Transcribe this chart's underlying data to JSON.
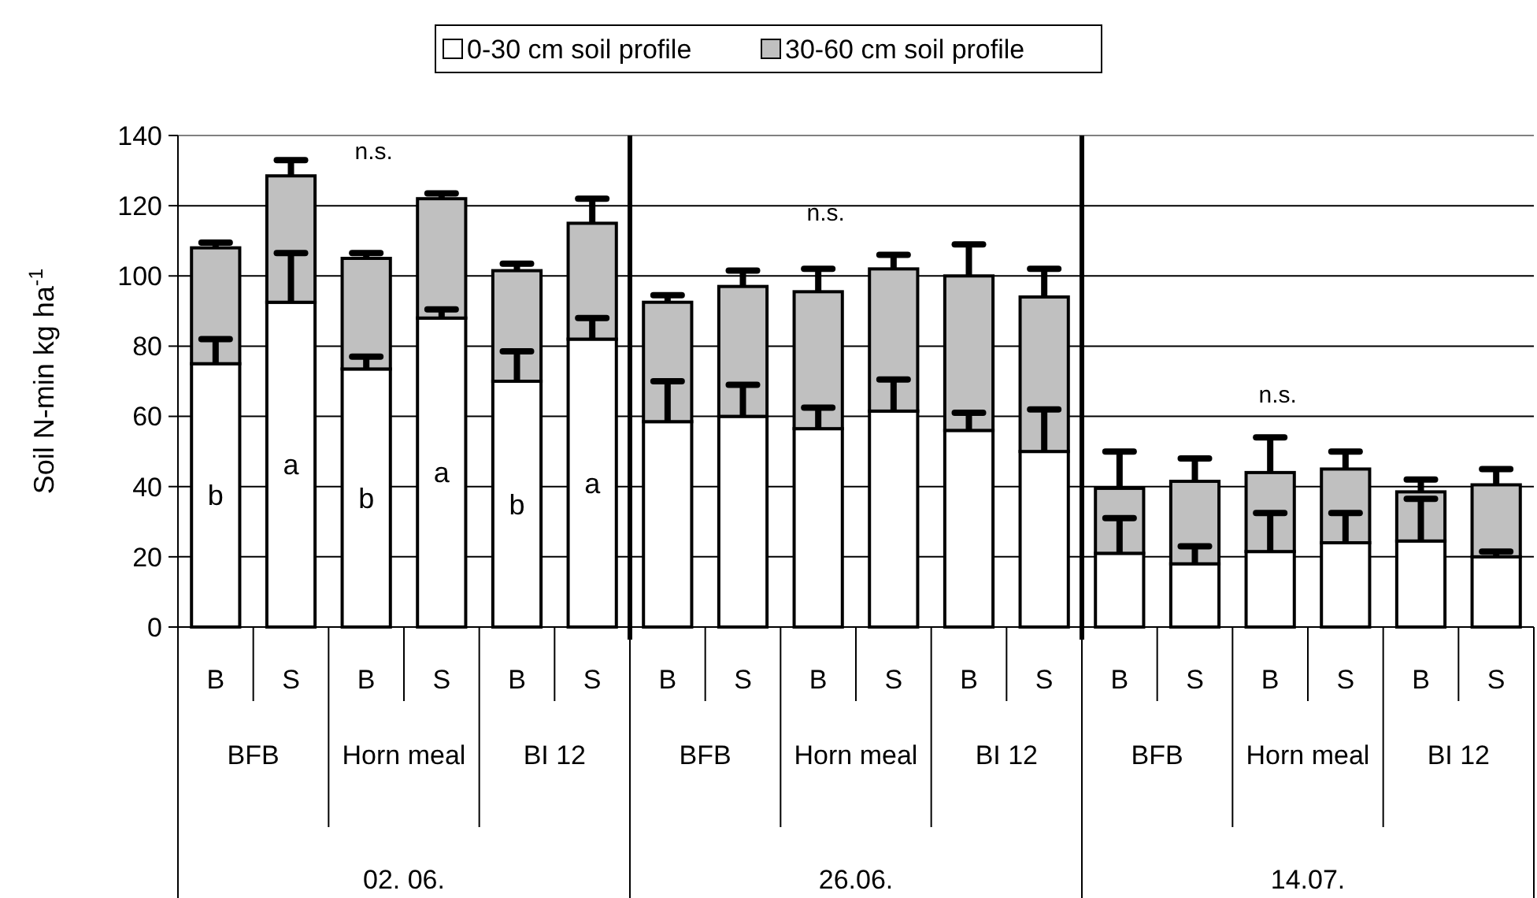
{
  "chart_data": {
    "type": "bar",
    "stacked": true,
    "ylabel": "Soil N-min kg ha$^{-1}$",
    "legend": "top",
    "grid": "y",
    "ylim": [
      0,
      140
    ],
    "yticks": [
      0,
      20,
      40,
      60,
      80,
      100,
      120,
      140
    ],
    "categories": [
      "B",
      "S",
      "B",
      "S",
      "B",
      "S",
      "B",
      "S",
      "B",
      "S",
      "B",
      "S",
      "B",
      "S",
      "B",
      "S",
      "B",
      "S"
    ],
    "series": [
      {
        "name": "0-30 cm soil profile",
        "color": "#ffffff",
        "values": [
          75,
          92.5,
          73.5,
          88,
          70,
          82,
          58.5,
          60,
          56.5,
          61.5,
          56,
          50,
          21,
          18,
          21.5,
          24,
          24.5,
          20
        ],
        "errors": [
          [
            75,
            82
          ],
          [
            92.5,
            106.5
          ],
          [
            73.5,
            77
          ],
          [
            88,
            90.5
          ],
          [
            70,
            78.5
          ],
          [
            82,
            88
          ],
          [
            58.5,
            70
          ],
          [
            60,
            69
          ],
          [
            56.5,
            62.5
          ],
          [
            61.5,
            70.5
          ],
          [
            56,
            61
          ],
          [
            50,
            62
          ],
          [
            21,
            31
          ],
          [
            18,
            23
          ],
          [
            21.5,
            32.5
          ],
          [
            24,
            32.5
          ],
          [
            24.5,
            36.5
          ],
          [
            20,
            21.5
          ]
        ],
        "value_labels": [
          "b",
          "a",
          "b",
          "a",
          "b",
          "a",
          null,
          null,
          null,
          null,
          null,
          null,
          null,
          null,
          null,
          null,
          null,
          null
        ]
      },
      {
        "name": "30-60 cm soil profile",
        "color": "#c0c0c0",
        "values": [
          33,
          36,
          31.5,
          34,
          31.5,
          33,
          34,
          37,
          39,
          40.5,
          44,
          44,
          18.5,
          23.5,
          22.5,
          21,
          14,
          20.5
        ],
        "errors": [
          [
            108,
            109.5
          ],
          [
            128.5,
            133
          ],
          [
            105,
            106.5
          ],
          [
            122,
            123.5
          ],
          [
            101.5,
            103.5
          ],
          [
            115,
            122
          ],
          [
            92.5,
            94.5
          ],
          [
            97,
            101.5
          ],
          [
            95.5,
            102
          ],
          [
            102,
            106
          ],
          [
            100,
            109
          ],
          [
            94,
            102
          ],
          [
            39.5,
            50
          ],
          [
            41.5,
            48
          ],
          [
            44,
            54
          ],
          [
            45,
            50
          ],
          [
            38.5,
            42
          ],
          [
            40.5,
            45
          ]
        ]
      }
    ],
    "annotations": [
      "BFB",
      "Horn meal",
      "BI 12",
      "BFB",
      "Horn meal",
      "BI 12",
      "BFB",
      "Horn meal",
      "BI 12",
      "02. 06.",
      "26.06.",
      "14.07.",
      "n.s.",
      "n.s.",
      "n.s."
    ]
  }
}
